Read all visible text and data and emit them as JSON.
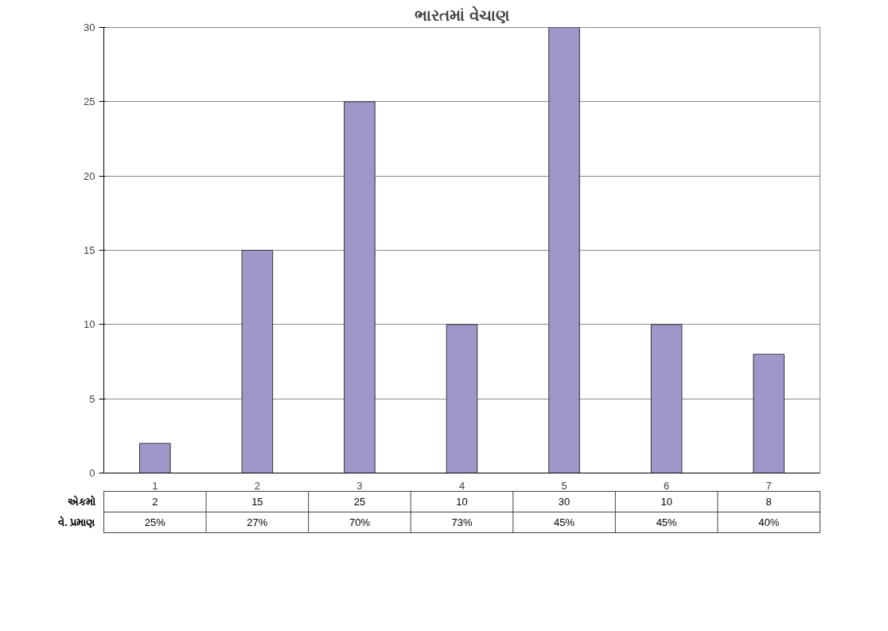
{
  "chart_data": {
    "type": "bar",
    "title": "ભારતમાં વેચાણ",
    "categories": [
      "1",
      "2",
      "3",
      "4",
      "5",
      "6",
      "7"
    ],
    "series": [
      {
        "name": "એકમો",
        "color": "#9f97c9",
        "values": [
          2,
          15,
          25,
          10,
          30,
          10,
          8
        ]
      }
    ],
    "ylim": [
      0,
      30
    ],
    "yticks": [
      0,
      5,
      10,
      15,
      20,
      25,
      30
    ],
    "grid": "y",
    "data_labels": true,
    "annotations": [
      "વે. પ્રમાણ",
      "25%",
      "27%",
      "70%",
      "73%",
      "45%",
      "45%",
      "40%"
    ]
  }
}
